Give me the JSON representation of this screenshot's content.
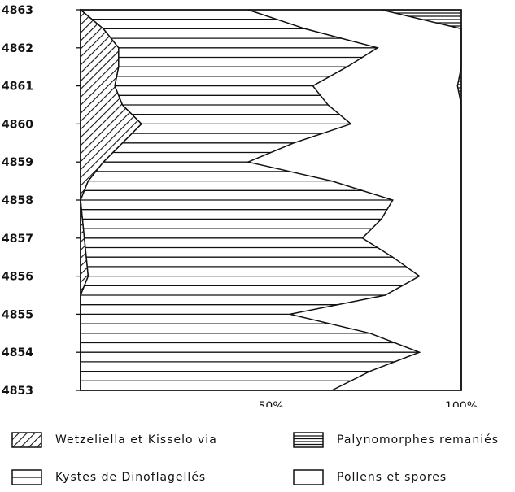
{
  "chart_data": {
    "type": "area",
    "orientation": "horizontal-stacked",
    "y_categories": [
      "4853",
      "4854",
      "4855",
      "4856",
      "4857",
      "4858",
      "4859",
      "4860",
      "4861",
      "4862",
      "4863"
    ],
    "x_ticks": [
      "50%",
      "100%"
    ],
    "xlim": [
      0,
      100
    ],
    "depth_samples": [
      4853.0,
      4853.5,
      4854.0,
      4854.5,
      4855.0,
      4855.5,
      4856.0,
      4856.5,
      4857.0,
      4857.5,
      4858.0,
      4858.5,
      4859.0,
      4859.5,
      4860.0,
      4860.5,
      4861.0,
      4861.5,
      4862.0,
      4862.5,
      4863.0
    ],
    "series": [
      {
        "name": "Wetzeliella et Kisselovia",
        "pattern": "diagonal",
        "cumulative": [
          0,
          0,
          0,
          0,
          0,
          0,
          2,
          1.5,
          1,
          0.5,
          0,
          2,
          6,
          11,
          16,
          11,
          9,
          10,
          10,
          6,
          0
        ]
      },
      {
        "name": "Kystes de Dinoflagellés",
        "pattern": "horizontal",
        "cumulative": [
          66,
          76,
          89,
          76,
          55,
          80,
          89,
          82,
          74,
          79,
          82,
          66,
          44,
          56,
          71,
          65,
          61,
          70,
          78,
          59,
          44
        ]
      },
      {
        "name": "Palynomorphes remaniés",
        "pattern": "horizontal-dense",
        "cumulative": [
          100,
          100,
          100,
          100,
          100,
          100,
          100,
          100,
          100,
          100,
          100,
          100,
          100,
          100,
          100,
          100,
          99,
          100,
          100,
          100,
          79
        ]
      },
      {
        "name": "Pollens et spores",
        "pattern": "blank",
        "cumulative": [
          100,
          100,
          100,
          100,
          100,
          100,
          100,
          100,
          100,
          100,
          100,
          100,
          100,
          100,
          100,
          100,
          100,
          100,
          100,
          100,
          100
        ]
      }
    ],
    "legend": {
      "placement": "bottom",
      "items": [
        {
          "label": "Wetzeliella et Kisselo via",
          "pattern": "diagonal"
        },
        {
          "label": "Palynomorphes remaniés",
          "pattern": "horizontal-dense"
        },
        {
          "label": "Kystes de Dinoflagellés",
          "pattern": "horizontal"
        },
        {
          "label": "Pollens et spores",
          "pattern": "blank"
        }
      ]
    }
  }
}
